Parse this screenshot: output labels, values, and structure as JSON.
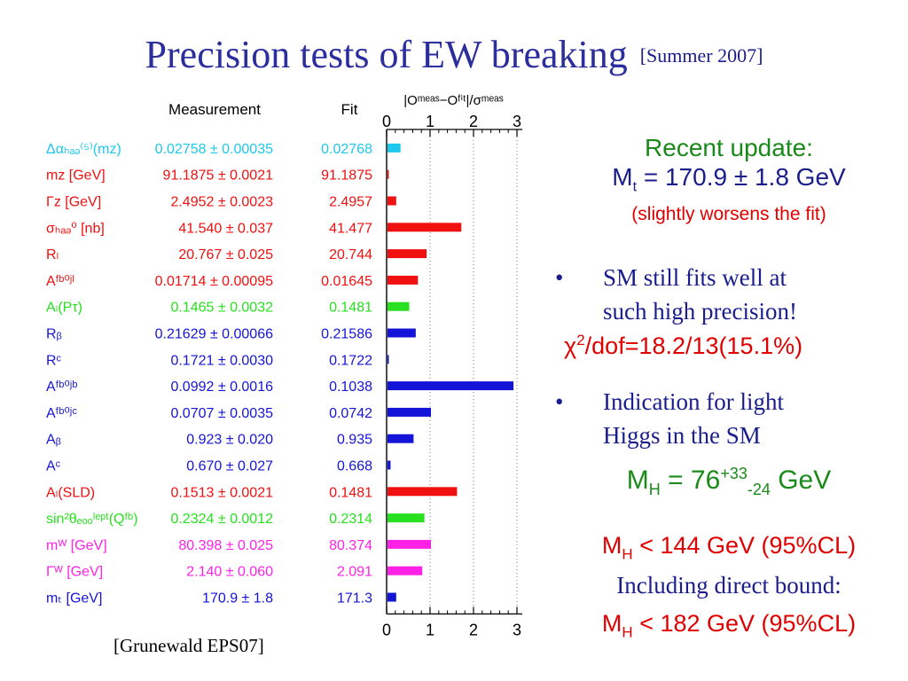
{
  "title": {
    "main": "Precision tests of EW breaking",
    "date": "[Summer 2007]"
  },
  "colors": {
    "cyan": "#1ec8ec",
    "red": "#f01010",
    "green": "#28e020",
    "blue": "#1414d8",
    "magenta": "#ff22e6",
    "title": "#2b2e9c",
    "axis": "#000000"
  },
  "chart_data": {
    "type": "bar",
    "orientation": "horizontal",
    "headers": {
      "measurement": "Measurement",
      "fit": "Fit"
    },
    "xlabel": "|Oᵐᵉᵃˢ−Oᶠⁱᵗ|/σᵐᵉᵃˢ",
    "xlim": [
      0,
      3
    ],
    "xticks": [
      0,
      1,
      2,
      3
    ],
    "grid": true,
    "rows": [
      {
        "label": "Δαₕₐₔ⁽⁵⁾(mᴢ)",
        "measurement": "0.02758 ± 0.00035",
        "fit": "0.02768",
        "pull": 0.3,
        "color": "cyan"
      },
      {
        "label": "mᴢ [GeV]",
        "measurement": "91.1875 ± 0.0021",
        "fit": "91.1875",
        "pull": 0.0,
        "color": "red"
      },
      {
        "label": "Γᴢ [GeV]",
        "measurement": "2.4952 ± 0.0023",
        "fit": "2.4957",
        "pull": 0.2,
        "color": "red"
      },
      {
        "label": "σₕₐₔ⁰ [nb]",
        "measurement": "41.540 ± 0.037",
        "fit": "41.477",
        "pull": 1.7,
        "color": "red"
      },
      {
        "label": "Rₗ",
        "measurement": "20.767 ± 0.025",
        "fit": "20.744",
        "pull": 0.9,
        "color": "red"
      },
      {
        "label": "Aᶠᵇ⁰ʲˡ",
        "measurement": "0.01714 ± 0.00095",
        "fit": "0.01645",
        "pull": 0.7,
        "color": "red"
      },
      {
        "label": "Aₗ(Pτ)",
        "measurement": "0.1465 ± 0.0032",
        "fit": "0.1481",
        "pull": 0.5,
        "color": "green"
      },
      {
        "label": "Rᵦ",
        "measurement": "0.21629 ± 0.00066",
        "fit": "0.21586",
        "pull": 0.65,
        "color": "blue"
      },
      {
        "label": "Rᶜ",
        "measurement": "0.1721 ± 0.0030",
        "fit": "0.1722",
        "pull": 0.03,
        "color": "blue"
      },
      {
        "label": "Aᶠᵇ⁰ʲᵇ",
        "measurement": "0.0992 ± 0.0016",
        "fit": "0.1038",
        "pull": 2.9,
        "color": "blue"
      },
      {
        "label": "Aᶠᵇ⁰ʲᶜ",
        "measurement": "0.0707 ± 0.0035",
        "fit": "0.0742",
        "pull": 1.0,
        "color": "blue"
      },
      {
        "label": "Aᵦ",
        "measurement": "0.923 ± 0.020",
        "fit": "0.935",
        "pull": 0.6,
        "color": "blue"
      },
      {
        "label": "Aᶜ",
        "measurement": "0.670 ± 0.027",
        "fit": "0.668",
        "pull": 0.07,
        "color": "blue"
      },
      {
        "label": "Aₗ(SLD)",
        "measurement": "0.1513 ± 0.0021",
        "fit": "0.1481",
        "pull": 1.6,
        "color": "red"
      },
      {
        "label": "sin²θₑₒₒˡᵉᵖᵗ(Qᶠᵇ)",
        "measurement": "0.2324 ± 0.0012",
        "fit": "0.2314",
        "pull": 0.85,
        "color": "green"
      },
      {
        "label": "mᵂ [GeV]",
        "measurement": "80.398 ± 0.025",
        "fit": "80.374",
        "pull": 1.0,
        "color": "magenta"
      },
      {
        "label": "Γᵂ [GeV]",
        "measurement": "2.140 ± 0.060",
        "fit": "2.091",
        "pull": 0.8,
        "color": "magenta"
      },
      {
        "label": "mₜ [GeV]",
        "measurement": "170.9 ± 1.8",
        "fit": "171.3",
        "pull": 0.2,
        "color": "blue"
      }
    ]
  },
  "credit": "[Grunewald EPS07]",
  "update": {
    "heading": "Recent update:",
    "mt_prefix": "M",
    "mt_sub": "t",
    "mt_value": " = 170.9 ± 1.8 GeV",
    "note": "(slightly worsens the fit)"
  },
  "bullets": [
    {
      "dot": "•",
      "text_line1": "SM still fits well at",
      "text_line2": "such high precision!"
    },
    {
      "dot": "•",
      "text_line1": "Indication for light",
      "text_line2": "Higgs in the SM"
    }
  ],
  "chi2": {
    "symbol": "χ",
    "sup": "2",
    "value": "/dof=18.2/13(15.1%)"
  },
  "higgs": {
    "prefix": "M",
    "sub": "H",
    "eq": " = 76",
    "plus": "+33",
    "minus": "-24",
    "unit": " GeV"
  },
  "limit1": {
    "prefix": "M",
    "sub": "H",
    "text": " < 144 GeV (95%CL)"
  },
  "including": "Including direct bound:",
  "limit2": {
    "prefix": "M",
    "sub": "H",
    "text": " < 182 GeV (95%CL)"
  }
}
